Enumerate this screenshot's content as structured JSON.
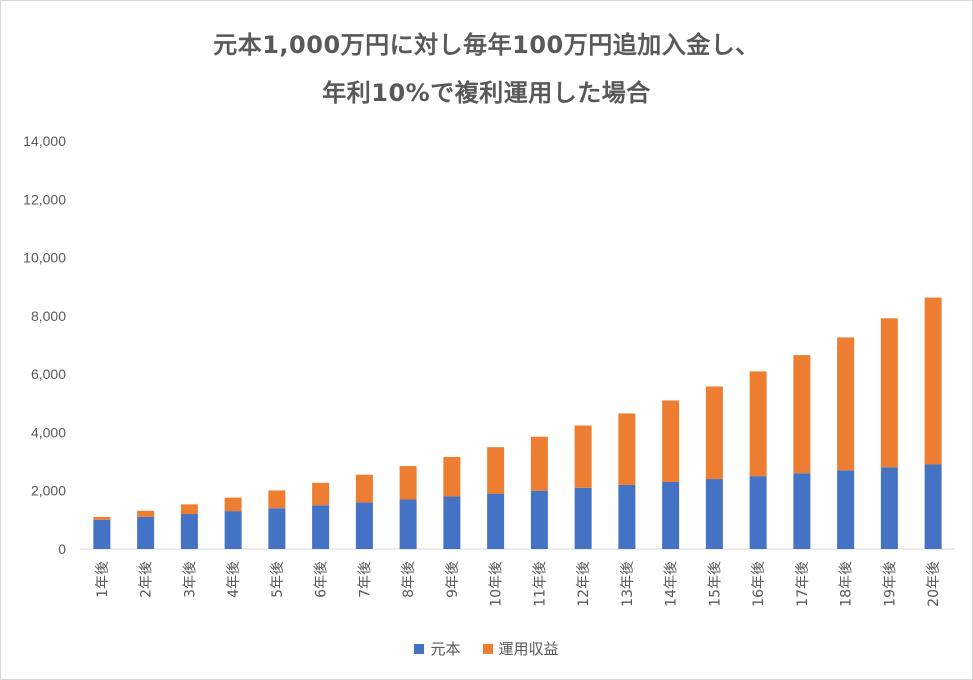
{
  "chart_data": {
    "type": "bar",
    "stacked": true,
    "title_line1": "元本1,000万円に対し毎年100万円追加入金し、",
    "title_line2": "年利10%で複利運用した場合",
    "categories": [
      "1年後",
      "2年後",
      "3年後",
      "4年後",
      "5年後",
      "6年後",
      "7年後",
      "8年後",
      "9年後",
      "10年後",
      "11年後",
      "12年後",
      "13年後",
      "14年後",
      "15年後",
      "16年後",
      "17年後",
      "18年後",
      "19年後",
      "20年後"
    ],
    "series": [
      {
        "name": "元本",
        "color": "#4472C4",
        "values": [
          1000,
          1100,
          1200,
          1300,
          1400,
          1500,
          1600,
          1700,
          1800,
          1900,
          2000,
          2100,
          2200,
          2300,
          2400,
          2500,
          2600,
          2700,
          2800,
          2900
        ]
      },
      {
        "name": "運用収益",
        "color": "#ED7D31",
        "values": [
          100,
          210,
          331,
          464,
          610,
          772,
          949,
          1144,
          1358,
          1594,
          1853,
          2138,
          2452,
          2797,
          3177,
          3595,
          4054,
          4560,
          5116,
          5727
        ]
      }
    ],
    "yticks": [
      "0",
      "2,000",
      "4,000",
      "6,000",
      "8,000",
      "10,000",
      "12,000",
      "14,000"
    ],
    "ylim": [
      0,
      14000
    ],
    "grid": false,
    "legend_position": "bottom"
  }
}
